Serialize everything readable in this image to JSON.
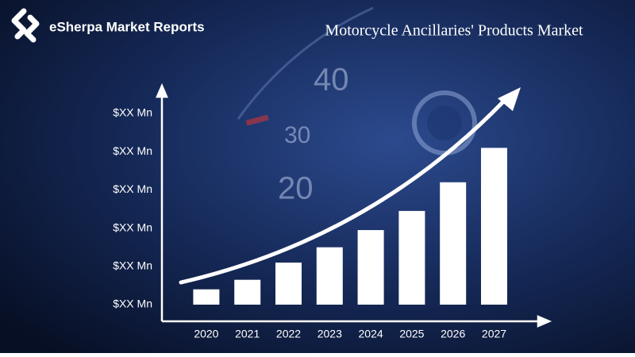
{
  "brand": "eSherpa Market Reports",
  "dial_labels": [
    "40",
    "30",
    "20"
  ],
  "chart_data": {
    "type": "bar",
    "title": "Motorcycle Ancillaries' Products Market",
    "categories": [
      "2020",
      "2021",
      "2022",
      "2023",
      "2024",
      "2025",
      "2026",
      "2027"
    ],
    "values": [
      0.4,
      0.65,
      1.1,
      1.5,
      1.95,
      2.45,
      3.2,
      4.1
    ],
    "color": "#ffffff",
    "ylim": [
      0,
      5
    ],
    "yticks": [
      {
        "value": 0,
        "label": "$XX Mn"
      },
      {
        "value": 1,
        "label": "$XX Mn"
      },
      {
        "value": 2,
        "label": "$XX Mn"
      },
      {
        "value": 3,
        "label": "$XX Mn"
      },
      {
        "value": 4,
        "label": "$XX Mn"
      },
      {
        "value": 5,
        "label": "$XX Mn"
      }
    ],
    "grid": false
  }
}
